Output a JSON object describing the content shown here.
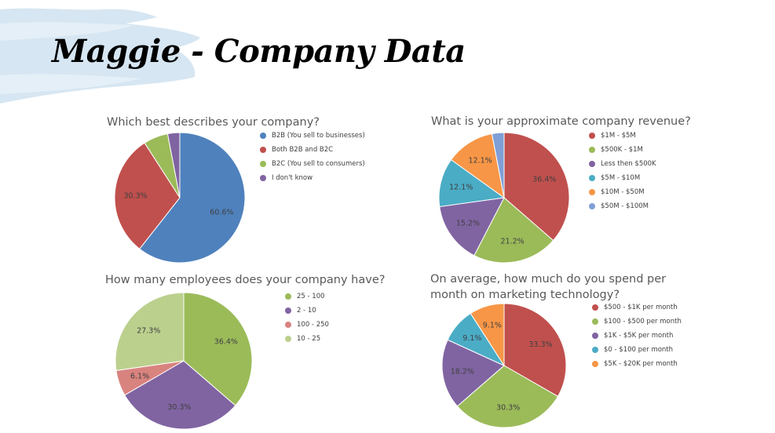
{
  "page": {
    "title": "Maggie - Company Data"
  },
  "chart_data": [
    {
      "type": "pie",
      "title": "Which best describes your company?",
      "start_angle": 0,
      "labels": [
        "B2B (You sell to businesses)",
        "Both B2B and B2C",
        "B2C (You sell to consumers)",
        "I don't know"
      ],
      "values": [
        60.6,
        30.3,
        6.1,
        3.0
      ],
      "data_labels": [
        "60.6%",
        "30.3%",
        "",
        ""
      ],
      "colors": [
        "#4F81BD",
        "#C0504D",
        "#9BBB59",
        "#8064A2"
      ],
      "legend_position": "right"
    },
    {
      "type": "pie",
      "title": "What is your approximate company revenue?",
      "start_angle": 0,
      "labels": [
        "$1M - $5M",
        "$500K - $1M",
        "Less then $500K",
        "$5M - $10M",
        "$10M - $50M",
        "$50M - $100M"
      ],
      "values": [
        36.4,
        21.2,
        15.2,
        12.1,
        12.1,
        3.0
      ],
      "data_labels": [
        "36.4%",
        "21.2%",
        "15.2%",
        "12.1%",
        "12.1%",
        ""
      ],
      "colors": [
        "#C0504D",
        "#9BBB59",
        "#8064A2",
        "#4BACC6",
        "#F79646",
        "#7F9FD6"
      ],
      "legend_position": "right"
    },
    {
      "type": "pie",
      "title": "How many employees does your company have?",
      "start_angle": 0,
      "labels": [
        "25 - 100",
        "2 - 10",
        "100 - 250",
        "10 - 25"
      ],
      "values": [
        36.4,
        30.3,
        6.1,
        27.3
      ],
      "data_labels": [
        "36.4%",
        "30.3%",
        "6.1%",
        "27.3%"
      ],
      "colors": [
        "#9BBB59",
        "#8064A2",
        "#D9837F",
        "#BCD08E"
      ],
      "legend_position": "right"
    },
    {
      "type": "pie",
      "title": "On average, how much do you spend per month on marketing technology?",
      "start_angle": 0,
      "labels": [
        "$500 - $1K per month",
        "$100 - $500 per month",
        "$1K - $5K per month",
        "$0 - $100 per month",
        "$5K - $20K per month"
      ],
      "values": [
        33.3,
        30.3,
        18.2,
        9.1,
        9.1
      ],
      "data_labels": [
        "33.3%",
        "30.3%",
        "18.2%",
        "9.1%",
        "9.1%"
      ],
      "colors": [
        "#C0504D",
        "#9BBB59",
        "#8064A2",
        "#4BACC6",
        "#F79646"
      ],
      "legend_position": "right"
    }
  ]
}
